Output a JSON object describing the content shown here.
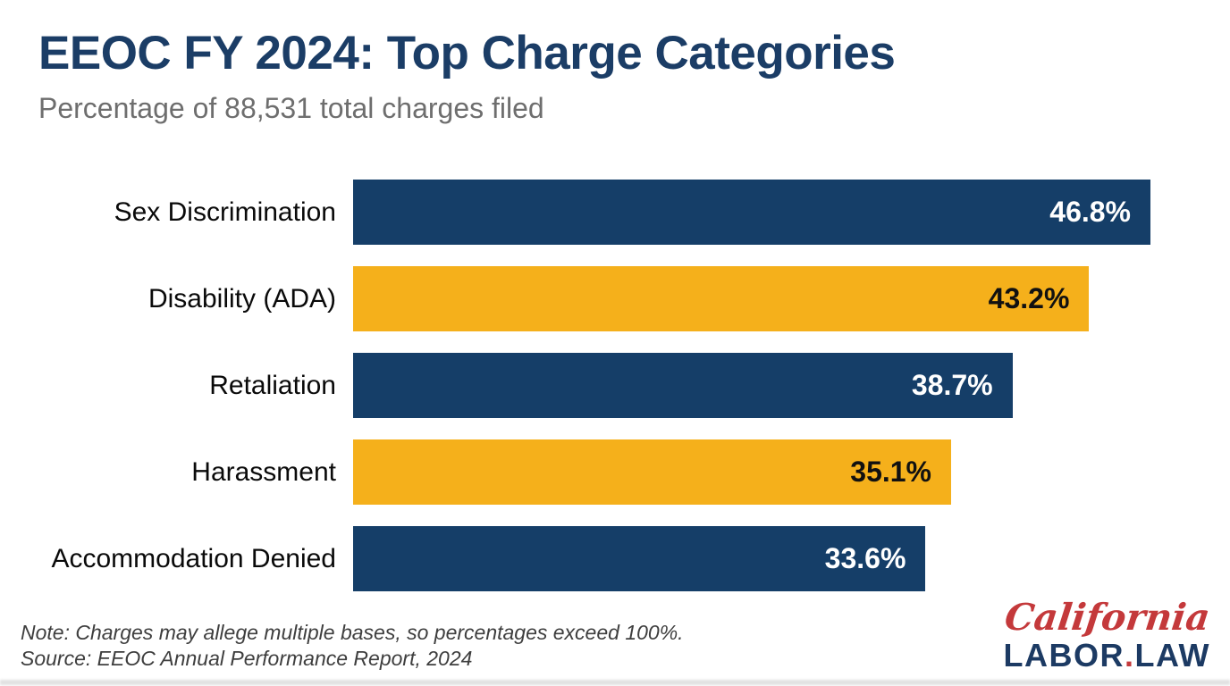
{
  "chart_data": {
    "type": "bar",
    "orientation": "horizontal",
    "title": "EEOC FY 2024: Top Charge Categories",
    "subtitle": "Percentage of 88,531 total charges filed",
    "categories": [
      "Sex Discrimination",
      "Disability (ADA)",
      "Retaliation",
      "Harassment",
      "Accommodation Denied"
    ],
    "values": [
      46.8,
      43.2,
      38.7,
      35.1,
      33.6
    ],
    "value_labels": [
      "46.8%",
      "43.2%",
      "38.7%",
      "35.1%",
      "33.6%"
    ],
    "xlim": [
      0,
      50
    ],
    "grid": false,
    "legend": false,
    "bar_colors": [
      "#153E68",
      "#F5B01B",
      "#153E68",
      "#F5B01B",
      "#153E68"
    ],
    "value_label_colors": [
      "#FFFFFF",
      "#111111",
      "#FFFFFF",
      "#111111",
      "#FFFFFF"
    ]
  },
  "footer": {
    "note": "Note: Charges may allege multiple bases, so percentages exceed 100%.",
    "source": "Source: EEOC Annual Performance Report, 2024"
  },
  "branding": {
    "script_text": "California",
    "wordmark_labor": "LABOR",
    "wordmark_dot": ".",
    "wordmark_law": "LAW",
    "script_color": "#C4393B",
    "wordmark_color": "#1C3A63",
    "dot_color": "#C4393B"
  },
  "colors": {
    "background": "#FFFFFF",
    "title": "#1B3D66",
    "subtitle": "#6E6E6E",
    "category_label": "#0A0A0A",
    "note_text": "#3E3E3E",
    "bar_navy": "#153E68",
    "bar_gold": "#F5B01B"
  }
}
